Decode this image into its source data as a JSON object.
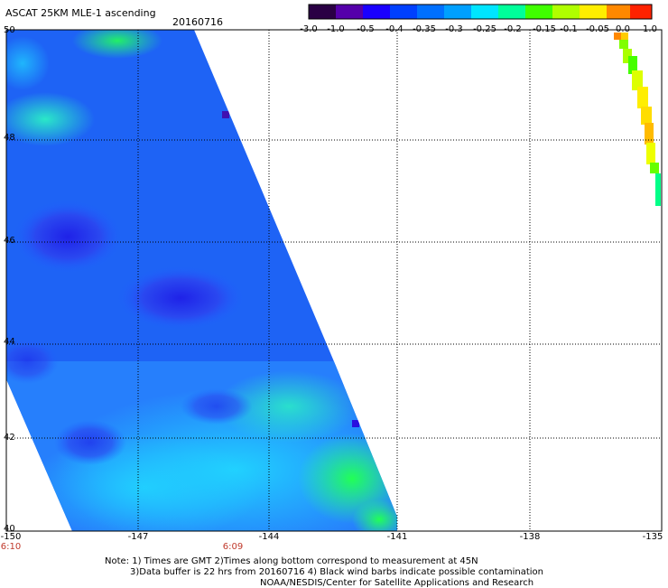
{
  "header": {
    "title": "ASCAT 25KM MLE-1 ascending",
    "date": "20160716"
  },
  "colorbar": {
    "labels": [
      "-3.0",
      "-1.0",
      "-0.5",
      "-0.4",
      "-0.35",
      "-0.3",
      "-0.25",
      "-0.2",
      "-0.15",
      "-0.1",
      "-0.05",
      "0.0",
      "1.0"
    ],
    "colors": [
      "#2a0044",
      "#5500aa",
      "#1a00ff",
      "#0040ff",
      "#0070ff",
      "#00a0ff",
      "#00e5ff",
      "#00ff9a",
      "#40ff00",
      "#b0ff00",
      "#ffee00",
      "#ff8800",
      "#ff2200"
    ]
  },
  "axes": {
    "lat_labels": [
      "50",
      "48",
      "46",
      "44",
      "42",
      "40"
    ],
    "lon_labels": [
      "-150",
      "-147",
      "-144",
      "-141",
      "-138",
      "-135"
    ],
    "time_labels": [
      "6:10",
      "6:09"
    ]
  },
  "notes": {
    "line1": "Note: 1) Times are GMT 2)Times along bottom correspond to measurement at 45N",
    "line2": "3)Data buffer is 22 hrs from 20160716 4) Black wind barbs indicate possible contamination",
    "line3": "NOAA/NESDIS/Center for Satellite Applications and Research"
  }
}
